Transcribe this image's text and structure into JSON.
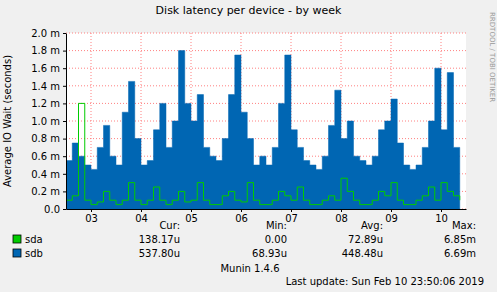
{
  "chart_data": {
    "type": "line",
    "title": "Disk latency per device - by week",
    "y_label": "Average IO Wait (seconds)",
    "x": [
      3,
      3.125,
      3.25,
      3.375,
      3.5,
      3.625,
      3.75,
      3.875,
      4,
      4.125,
      4.25,
      4.375,
      4.5,
      4.625,
      4.75,
      4.875,
      5,
      5.125,
      5.25,
      5.375,
      5.5,
      5.625,
      5.75,
      5.875,
      6,
      6.125,
      6.25,
      6.375,
      6.5,
      6.625,
      6.75,
      6.875,
      7,
      7.125,
      7.25,
      7.375,
      7.5,
      7.625,
      7.75,
      7.875,
      8,
      8.125,
      8.25,
      8.375,
      8.5,
      8.625,
      8.75,
      8.875,
      9,
      9.125,
      9.25,
      9.375,
      9.5,
      9.625,
      9.75,
      9.875,
      10,
      10.125,
      10.25,
      10.375,
      10.5,
      10.625,
      10.75,
      10.875
    ],
    "xlim": [
      3,
      11
    ],
    "xticks": [
      {
        "value": 3.5,
        "label": "03"
      },
      {
        "value": 4.5,
        "label": "04"
      },
      {
        "value": 5.5,
        "label": "05"
      },
      {
        "value": 6.5,
        "label": "06"
      },
      {
        "value": 7.5,
        "label": "07"
      },
      {
        "value": 8.5,
        "label": "08"
      },
      {
        "value": 9.5,
        "label": "09"
      },
      {
        "value": 10.5,
        "label": "10"
      }
    ],
    "ylim": [
      0,
      0.002
    ],
    "yticks": [
      {
        "value": 0,
        "label": "0.0"
      },
      {
        "value": 0.0002,
        "label": "0.2 m"
      },
      {
        "value": 0.0004,
        "label": "0.4 m"
      },
      {
        "value": 0.0006,
        "label": "0.6 m"
      },
      {
        "value": 0.0008,
        "label": "0.8 m"
      },
      {
        "value": 0.001,
        "label": "1.0 m"
      },
      {
        "value": 0.0012,
        "label": "1.2 m"
      },
      {
        "value": 0.0014,
        "label": "1.4 m"
      },
      {
        "value": 0.0016,
        "label": "1.6 m"
      },
      {
        "value": 0.0018,
        "label": "1.8 m"
      },
      {
        "value": 0.002,
        "label": "2.0 m"
      }
    ],
    "grid": true,
    "legend": "bottom left",
    "stat_headers": [
      "Cur:",
      "Min:",
      "Avg:",
      "Max:"
    ],
    "series": [
      {
        "name": "sda",
        "color": "#00cc00",
        "type": "line",
        "stats": [
          "138.17u",
          "0.00",
          "72.89u",
          "6.85m"
        ],
        "values": [
          0.0001,
          0.00015,
          0.0012,
          0.0001,
          5e-05,
          8e-05,
          0.0002,
          0.0001,
          5e-05,
          0.0001,
          0.0003,
          0.0001,
          5e-05,
          0.0001,
          0.00025,
          0.0001,
          5e-05,
          0.0001,
          0.0002,
          8e-05,
          0.0001,
          0.0003,
          0.0001,
          5e-05,
          5e-05,
          0.00015,
          0.0002,
          0.0001,
          8e-05,
          0.0003,
          0.0001,
          5e-05,
          5e-05,
          0.0001,
          0.0002,
          0.00015,
          0.0001,
          0.00025,
          0.0001,
          5e-05,
          5e-05,
          0.0001,
          0.00015,
          0.0001,
          0.00035,
          0.0002,
          0.0001,
          5e-05,
          5e-05,
          0.0001,
          0.0002,
          0.00015,
          0.0003,
          0.0001,
          5e-05,
          5e-05,
          0.0001,
          0.00015,
          0.00025,
          0.0001,
          0.0003,
          0.0002,
          0.00015,
          0.0001
        ]
      },
      {
        "name": "sdb",
        "color": "#0066b3",
        "type": "area",
        "stats": [
          "537.80u",
          "68.93u",
          "448.48u",
          "6.69m"
        ],
        "values": [
          0.00055,
          0.00075,
          0.0006,
          0.0005,
          0.00045,
          0.0007,
          0.00095,
          0.0006,
          0.0005,
          0.0011,
          0.00145,
          0.0008,
          0.0005,
          0.00055,
          0.0009,
          0.0012,
          0.0007,
          0.001,
          0.0018,
          0.0012,
          0.001,
          0.0013,
          0.0007,
          0.0006,
          0.00055,
          0.0008,
          0.0013,
          0.00175,
          0.0011,
          0.0008,
          0.0005,
          0.0006,
          0.0005,
          0.0007,
          0.0012,
          0.00175,
          0.0009,
          0.0007,
          0.00055,
          0.0005,
          0.00045,
          0.0006,
          0.00095,
          0.00135,
          0.0008,
          0.001,
          0.0006,
          0.00055,
          0.0005,
          0.0006,
          0.0009,
          0.001,
          0.00125,
          0.00075,
          0.0005,
          0.00045,
          0.0005,
          0.0007,
          0.001,
          0.0016,
          0.0009,
          0.00155,
          0.0007,
          0.0005
        ]
      }
    ],
    "credit": "Munin 1.4.6",
    "footer": "Last update: Sun Feb 10 23:50:06 2019",
    "watermark": "RRDTOOL / TOBI OETIKER"
  }
}
